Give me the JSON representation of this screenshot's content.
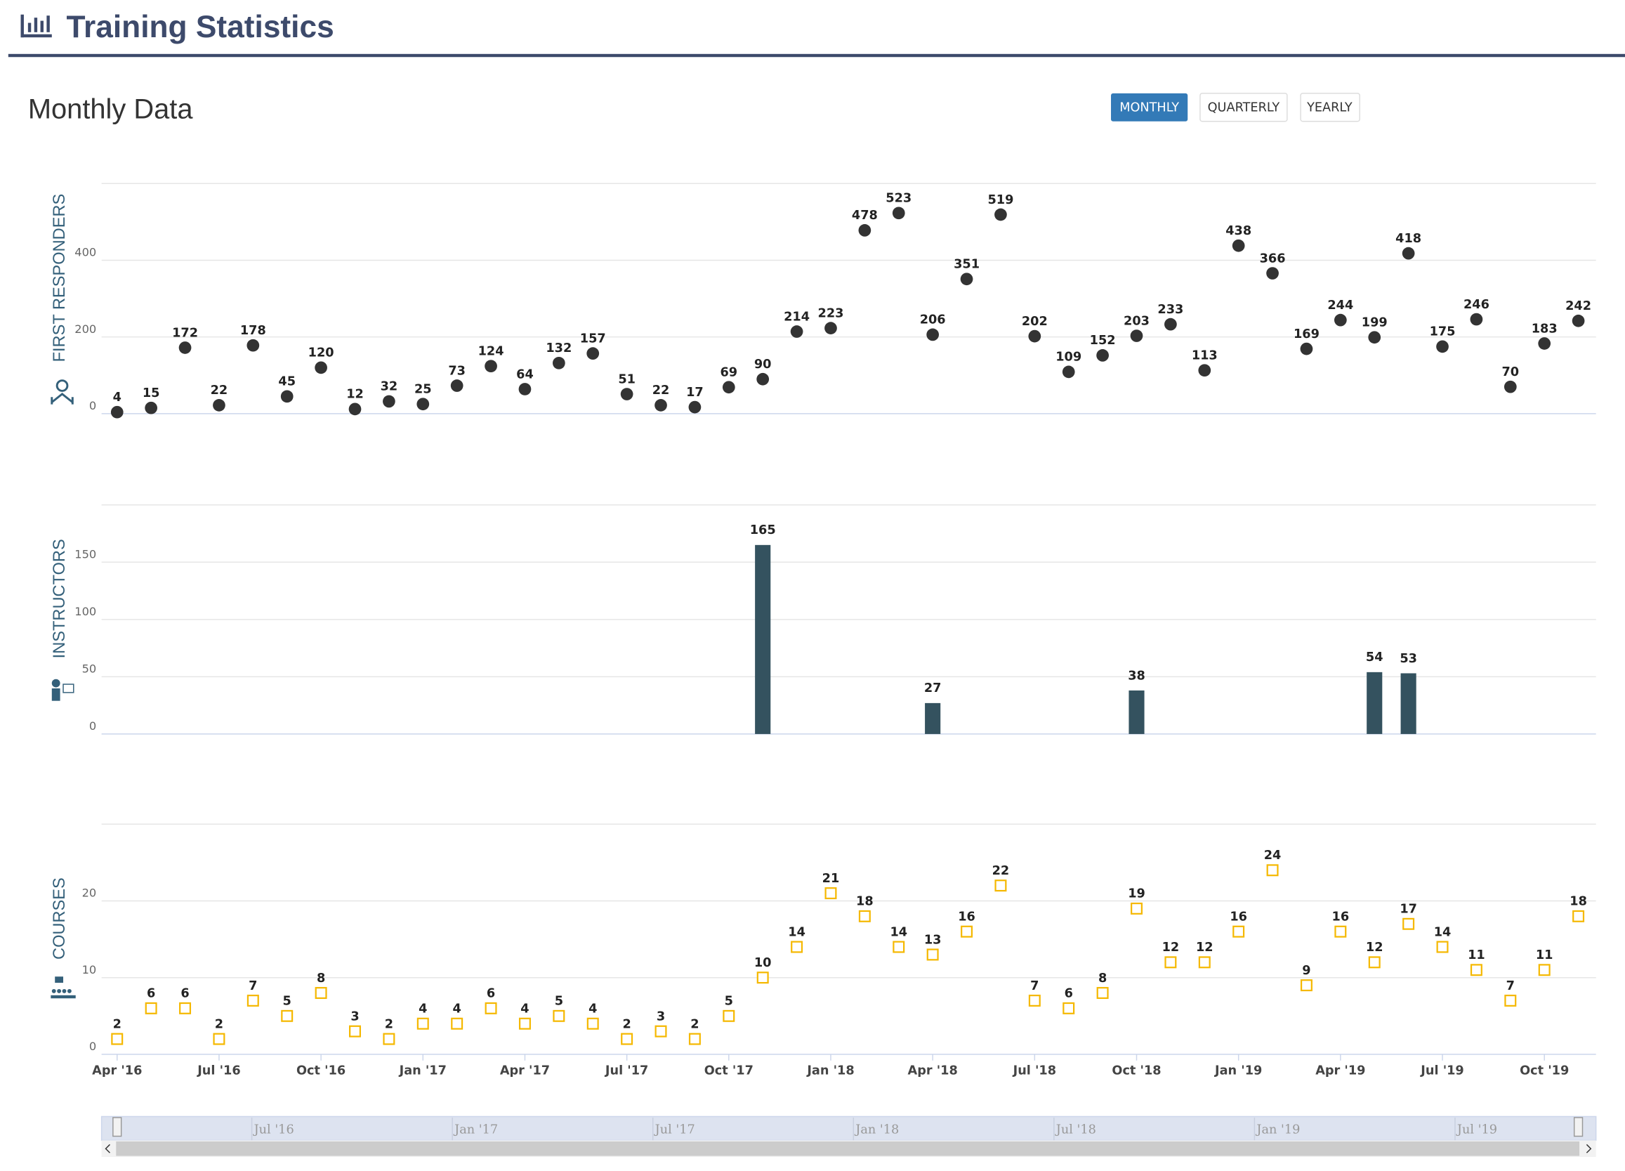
{
  "header": {
    "title": "Training Statistics"
  },
  "section_title": "Monthly Data",
  "buttons": [
    "MONTHLY",
    "QUARTERLY",
    "YEARLY"
  ],
  "chart_data": [
    {
      "type": "scatter",
      "y_label": "FIRST RESPONDERS",
      "color": "#333333",
      "marker": "circle",
      "values": [
        4,
        15,
        172,
        22,
        178,
        45,
        120,
        12,
        32,
        25,
        73,
        124,
        64,
        132,
        157,
        51,
        22,
        17,
        69,
        90,
        214,
        223,
        478,
        523,
        206,
        351,
        519,
        202,
        109,
        152,
        203,
        233,
        113,
        438,
        366,
        169,
        244,
        199,
        418,
        175,
        246,
        70,
        183,
        242
      ],
      "ylim": [
        0,
        600
      ],
      "yticks": [
        0,
        200,
        400
      ],
      "grid": true
    },
    {
      "type": "bar",
      "y_label": "INSTRUCTORS",
      "color": "#34525f",
      "values": [
        null,
        null,
        null,
        null,
        null,
        null,
        null,
        null,
        null,
        null,
        null,
        null,
        null,
        null,
        null,
        null,
        null,
        null,
        null,
        165,
        null,
        null,
        null,
        null,
        27,
        null,
        null,
        null,
        null,
        null,
        38,
        null,
        null,
        null,
        null,
        null,
        null,
        54,
        53,
        null,
        null,
        null,
        null,
        null
      ],
      "ylim": [
        0,
        200
      ],
      "yticks": [
        0,
        50,
        100,
        150
      ],
      "grid": true
    },
    {
      "type": "scatter",
      "y_label": "COURSES",
      "color": "#f5b800",
      "marker": "square",
      "categories": [
        "Apr '16",
        null,
        null,
        "Jul '16",
        null,
        null,
        "Oct '16",
        null,
        null,
        "Jan '17",
        null,
        null,
        "Apr '17",
        null,
        null,
        "Jul '17",
        null,
        null,
        "Oct '17",
        null,
        null,
        "Jan '18",
        null,
        null,
        "Apr '18",
        null,
        null,
        "Jul '18",
        null,
        null,
        "Oct '18",
        null,
        null,
        "Jan '19",
        null,
        null,
        "Apr '19",
        null,
        null,
        "Jul '19",
        null,
        null,
        "Oct '19",
        null
      ],
      "values": [
        2,
        6,
        6,
        2,
        7,
        5,
        8,
        3,
        2,
        4,
        4,
        6,
        4,
        5,
        4,
        2,
        3,
        2,
        5,
        10,
        14,
        21,
        18,
        14,
        13,
        16,
        22,
        7,
        6,
        8,
        19,
        12,
        12,
        16,
        24,
        9,
        16,
        12,
        17,
        14,
        11,
        7,
        11,
        18
      ],
      "ylim": [
        0,
        30
      ],
      "yticks": [
        0,
        10,
        20
      ],
      "grid": true
    }
  ],
  "navigator": {
    "labels": [
      "Jul '16",
      "Jan '17",
      "Jul '17",
      "Jan '18",
      "Jul '18",
      "Jan '19",
      "Jul '19"
    ]
  }
}
